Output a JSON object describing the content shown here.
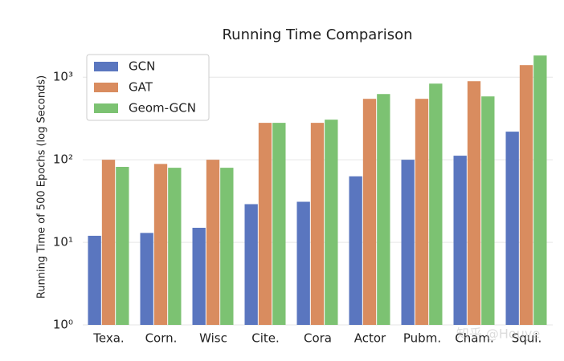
{
  "chart_data": {
    "type": "bar",
    "title": "Running Time Comparison",
    "y_label": "Running Time of 500 Epochs (log Seconds)",
    "categories": [
      "Texa.",
      "Corn.",
      "Wisc",
      "Cite.",
      "Cora",
      "Actor",
      "Pubm.",
      "Cham.",
      "Squi."
    ],
    "series": [
      {
        "name": "GCN",
        "color": "#5a76bf",
        "values": [
          12,
          13,
          15,
          29,
          31,
          63,
          100,
          112,
          219
        ]
      },
      {
        "name": "GAT",
        "color": "#d98c5f",
        "values": [
          100,
          89,
          100,
          280,
          280,
          547,
          547,
          894,
          1400
        ]
      },
      {
        "name": "Geom-GCN",
        "color": "#7cc272",
        "values": [
          82,
          80,
          80,
          280,
          306,
          625,
          836,
          585,
          1830
        ]
      }
    ],
    "ylim": [
      1,
      2150
    ],
    "log_scale": true,
    "grid": true,
    "legend": "upper left",
    "yticks": [
      {
        "value": 1,
        "label": "10⁰"
      },
      {
        "value": 10,
        "label": "10¹"
      },
      {
        "value": 100,
        "label": "10²"
      },
      {
        "value": 1000,
        "label": "10³"
      }
    ],
    "watermark": "知乎 @Houye"
  }
}
